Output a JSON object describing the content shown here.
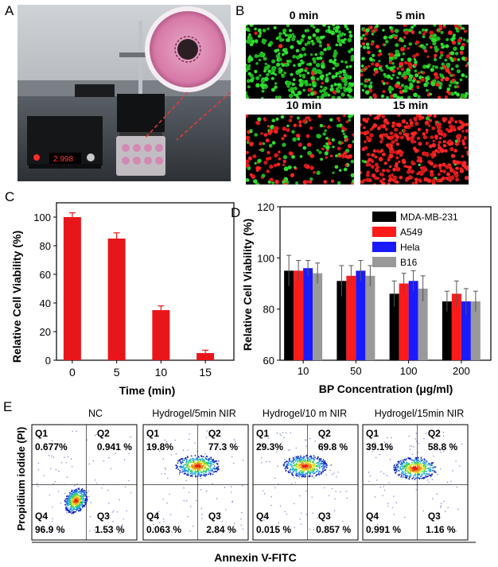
{
  "panel_labels": {
    "a": "A",
    "b": "B",
    "c": "C",
    "d": "D",
    "e": "E"
  },
  "panelB": {
    "titles": [
      "0 min",
      "5 min",
      "10 min",
      "15 min"
    ]
  },
  "chart_data": [
    {
      "id": "C",
      "type": "bar",
      "categories": [
        "0",
        "5",
        "10",
        "15"
      ],
      "values": [
        100,
        85,
        35,
        5
      ],
      "errors": [
        3,
        4,
        3,
        2
      ],
      "xlabel": "Time (min)",
      "ylabel": "Relative Cell Viability (%)",
      "ylim": [
        0,
        110
      ],
      "yticks": [
        "0",
        "20",
        "40",
        "60",
        "80",
        "100"
      ],
      "color": "#e8161b"
    },
    {
      "id": "D",
      "type": "bar",
      "categories": [
        "10",
        "50",
        "100",
        "200"
      ],
      "series": [
        {
          "name": "MDA-MB-231",
          "values": [
            95,
            91,
            86,
            83
          ],
          "errors": [
            6,
            6,
            5,
            4
          ],
          "color": "#000000"
        },
        {
          "name": "A549",
          "values": [
            95,
            93,
            90,
            86
          ],
          "errors": [
            4,
            4,
            4,
            5
          ],
          "color": "#ff1a1a"
        },
        {
          "name": "Hela",
          "values": [
            96,
            95,
            91,
            83
          ],
          "errors": [
            3,
            4,
            4,
            5
          ],
          "color": "#1a1aff"
        },
        {
          "name": "B16",
          "values": [
            94,
            93,
            88,
            83
          ],
          "errors": [
            4,
            4,
            5,
            4
          ],
          "color": "#999999"
        }
      ],
      "xlabel": "BP Concentration (μg/ml)",
      "ylabel": "Relative Cell Viability (%)",
      "ylim": [
        60,
        120
      ],
      "yticks": [
        "60",
        "80",
        "100",
        "120"
      ],
      "legend_position": "top-right"
    },
    {
      "id": "E",
      "type": "scatter",
      "xlabel": "Annexin V-FITC",
      "ylabel": "Propidium iodide (PI)",
      "quadrant_labels": [
        "Q1",
        "Q2",
        "Q3",
        "Q4"
      ],
      "plots": [
        {
          "title": "NC",
          "Q1": "0.677%",
          "Q2": "0.941 %",
          "Q3": "1.53 %",
          "Q4": "96.9 %"
        },
        {
          "title": "Hydrogel/5min NIR",
          "Q1": "19.8%",
          "Q2": "77.3 %",
          "Q3": "2.84 %",
          "Q4": "0.063 %"
        },
        {
          "title": "Hydrogel/10 m NIR",
          "Q1": "29.3%",
          "Q2": "69.8 %",
          "Q3": "0.857 %",
          "Q4": "0.015 %"
        },
        {
          "title": "Hydrogel/15min NIR",
          "Q1": "39.1%",
          "Q2": "58.8 %",
          "Q3": "1.16 %",
          "Q4": "0.991 %"
        }
      ]
    }
  ],
  "panelA": {
    "display_value": "2.998"
  }
}
